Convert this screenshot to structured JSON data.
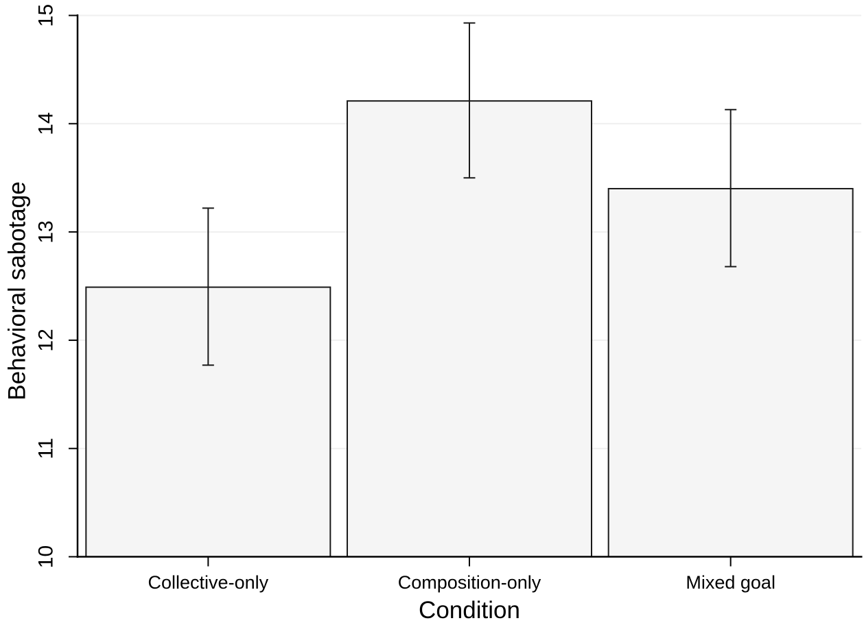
{
  "chart_data": {
    "type": "bar",
    "title": "",
    "xlabel": "Condition",
    "ylabel": "Behavioral sabotage",
    "categories": [
      "Collective-only",
      "Composition-only",
      "Mixed goal"
    ],
    "values": [
      12.49,
      14.21,
      13.4
    ],
    "ci_low": [
      11.77,
      13.5,
      12.68
    ],
    "ci_high": [
      13.22,
      14.93,
      14.13
    ],
    "ylim": [
      10,
      15
    ],
    "yticks": [
      10,
      11,
      12,
      13,
      14,
      15
    ],
    "grid": true,
    "legend": "none",
    "colors": {
      "bar_fill": "#f5f5f5",
      "bar_stroke": "#1a1a1a",
      "error_bar": "#1a1a1a",
      "gridline": "#efefef",
      "axis": "#000000",
      "text": "#000000",
      "background": "#ffffff"
    }
  }
}
